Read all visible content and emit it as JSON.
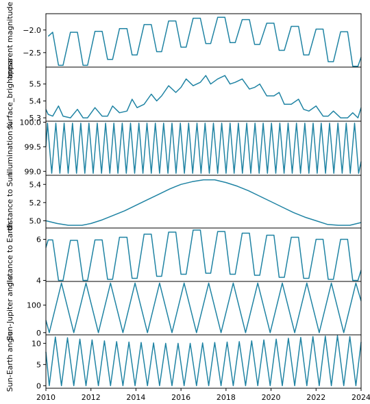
{
  "chart_data": {
    "type": "line",
    "x_axis": {
      "xlim": [
        2010,
        2024
      ],
      "ticks": [
        "2010",
        "2012",
        "2014",
        "2016",
        "2018",
        "2020",
        "2022",
        "2024"
      ],
      "xlabel": ""
    },
    "line_color": "#1f83a3",
    "panels": [
      {
        "ylabel": "apparent magnitude",
        "ylim": [
          -2.82,
          -1.64
        ],
        "ticks": [
          {
            "value": -2.0,
            "label": "−2.0"
          },
          {
            "value": -2.5,
            "label": "−2.5"
          }
        ],
        "series": {
          "x": [
            2010.1,
            2010.3,
            2010.56,
            2010.76,
            2011.09,
            2011.4,
            2011.65,
            2011.85,
            2012.18,
            2012.5,
            2012.74,
            2012.96,
            2013.27,
            2013.6,
            2013.83,
            2014.05,
            2014.36,
            2014.68,
            2014.92,
            2015.14,
            2015.45,
            2015.77,
            2016.0,
            2016.23,
            2016.54,
            2016.86,
            2017.1,
            2017.32,
            2017.63,
            2017.95,
            2018.18,
            2018.41,
            2018.72,
            2019.04,
            2019.27,
            2019.5,
            2019.81,
            2020.13,
            2020.36,
            2020.59,
            2020.9,
            2021.22,
            2021.45,
            2021.68,
            2022.0,
            2022.31,
            2022.54,
            2022.77,
            2023.09,
            2023.4,
            2023.63,
            2023.86,
            2024.0
          ],
          "y": [
            -2.14,
            -2.05,
            -2.78,
            -2.78,
            -2.05,
            -2.05,
            -2.78,
            -2.78,
            -2.03,
            -2.03,
            -2.65,
            -2.65,
            -1.97,
            -1.97,
            -2.55,
            -2.55,
            -1.88,
            -1.88,
            -2.48,
            -2.48,
            -1.8,
            -1.8,
            -2.38,
            -2.38,
            -1.74,
            -1.74,
            -2.3,
            -2.3,
            -1.72,
            -1.72,
            -2.28,
            -2.28,
            -1.77,
            -1.77,
            -2.32,
            -2.32,
            -1.85,
            -1.85,
            -2.45,
            -2.45,
            -1.92,
            -1.92,
            -2.55,
            -2.55,
            -1.98,
            -1.98,
            -2.7,
            -2.7,
            -2.04,
            -2.04,
            -2.8,
            -2.8,
            -2.6
          ]
        }
      },
      {
        "ylabel": "surface_brightness",
        "ylim": [
          5.28,
          5.6
        ],
        "ticks": [
          {
            "value": 5.3,
            "label": "5.3"
          },
          {
            "value": 5.4,
            "label": "5.4"
          },
          {
            "value": 5.5,
            "label": "5.5"
          }
        ],
        "series": {
          "x": [
            2010.0,
            2010.1,
            2010.3,
            2010.56,
            2010.76,
            2011.09,
            2011.4,
            2011.65,
            2011.85,
            2012.18,
            2012.5,
            2012.74,
            2012.96,
            2013.27,
            2013.6,
            2013.83,
            2014.05,
            2014.36,
            2014.68,
            2014.92,
            2015.14,
            2015.45,
            2015.77,
            2016.0,
            2016.23,
            2016.54,
            2016.86,
            2017.1,
            2017.32,
            2017.63,
            2017.95,
            2018.18,
            2018.41,
            2018.72,
            2019.04,
            2019.27,
            2019.5,
            2019.81,
            2020.13,
            2020.36,
            2020.59,
            2020.9,
            2021.22,
            2021.45,
            2021.68,
            2022.0,
            2022.31,
            2022.54,
            2022.77,
            2023.09,
            2023.4,
            2023.63,
            2023.86,
            2024.0
          ],
          "y": [
            5.35,
            5.32,
            5.31,
            5.37,
            5.31,
            5.3,
            5.35,
            5.3,
            5.3,
            5.36,
            5.31,
            5.31,
            5.37,
            5.33,
            5.34,
            5.41,
            5.36,
            5.38,
            5.44,
            5.4,
            5.43,
            5.49,
            5.45,
            5.48,
            5.53,
            5.49,
            5.51,
            5.55,
            5.5,
            5.53,
            5.55,
            5.5,
            5.51,
            5.53,
            5.47,
            5.48,
            5.5,
            5.43,
            5.43,
            5.45,
            5.38,
            5.38,
            5.41,
            5.35,
            5.34,
            5.37,
            5.31,
            5.31,
            5.34,
            5.3,
            5.3,
            5.33,
            5.3,
            5.36
          ]
        }
      },
      {
        "ylabel": "illumination %",
        "ylim": [
          98.92,
          100.02
        ],
        "ticks": [
          {
            "value": 99.0,
            "label": "99.0"
          },
          {
            "value": 99.5,
            "label": "99.5"
          },
          {
            "value": 100.0,
            "label": "100.0"
          }
        ],
        "series": {
          "x": [
            2010.0,
            2010.07,
            2010.26,
            2010.44,
            2010.62,
            2010.81,
            2010.99,
            2011.18,
            2011.36,
            2011.55,
            2011.73,
            2011.91,
            2012.1,
            2012.28,
            2012.47,
            2012.65,
            2012.84,
            2013.02,
            2013.2,
            2013.39,
            2013.57,
            2013.76,
            2013.94,
            2014.13,
            2014.31,
            2014.49,
            2014.68,
            2014.86,
            2015.05,
            2015.23,
            2015.42,
            2015.6,
            2015.78,
            2015.97,
            2016.15,
            2016.34,
            2016.52,
            2016.71,
            2016.89,
            2017.07,
            2017.26,
            2017.44,
            2017.63,
            2017.81,
            2018.0,
            2018.18,
            2018.36,
            2018.55,
            2018.73,
            2018.92,
            2019.1,
            2019.29,
            2019.47,
            2019.65,
            2019.84,
            2020.02,
            2020.21,
            2020.39,
            2020.58,
            2020.76,
            2020.94,
            2021.13,
            2021.31,
            2021.5,
            2021.68,
            2021.87,
            2022.05,
            2022.23,
            2022.42,
            2022.6,
            2022.79,
            2022.97,
            2023.16,
            2023.34,
            2023.52,
            2023.71,
            2023.89,
            2024.0
          ],
          "y": [
            99.5,
            99.98,
            98.96,
            99.98,
            98.96,
            99.98,
            98.96,
            99.98,
            98.96,
            99.98,
            98.96,
            99.98,
            98.96,
            99.98,
            98.96,
            99.98,
            98.96,
            99.98,
            98.96,
            99.98,
            98.96,
            99.98,
            98.96,
            99.98,
            98.96,
            99.98,
            98.96,
            99.98,
            98.96,
            99.98,
            98.96,
            99.98,
            98.96,
            99.98,
            98.96,
            99.98,
            98.96,
            99.98,
            98.96,
            99.98,
            98.96,
            99.98,
            98.96,
            99.98,
            98.96,
            99.98,
            98.96,
            99.98,
            98.96,
            99.98,
            98.96,
            99.98,
            98.96,
            99.98,
            98.96,
            99.98,
            98.96,
            99.98,
            98.96,
            99.98,
            98.96,
            99.98,
            98.96,
            99.98,
            98.96,
            99.98,
            98.96,
            99.98,
            98.96,
            99.98,
            98.96,
            99.98,
            98.96,
            99.98,
            98.96,
            99.98,
            98.96,
            99.2
          ]
        }
      },
      {
        "ylabel": "distance to Sun",
        "ylim": [
          4.92,
          5.5
        ],
        "ticks": [
          {
            "value": 5.0,
            "label": "5.0"
          },
          {
            "value": 5.2,
            "label": "5.2"
          },
          {
            "value": 5.4,
            "label": "5.4"
          }
        ],
        "series": {
          "x": [
            2010.0,
            2010.5,
            2011.0,
            2011.25,
            2011.6,
            2012.0,
            2012.5,
            2013.0,
            2013.5,
            2014.0,
            2014.5,
            2015.0,
            2015.5,
            2016.0,
            2016.5,
            2017.0,
            2017.2,
            2017.5,
            2018.0,
            2018.5,
            2019.0,
            2019.5,
            2020.0,
            2020.5,
            2021.0,
            2021.5,
            2022.0,
            2022.5,
            2023.0,
            2023.15,
            2023.5,
            2024.0
          ],
          "y": [
            5.0,
            4.97,
            4.95,
            4.95,
            4.95,
            4.97,
            5.01,
            5.06,
            5.11,
            5.17,
            5.23,
            5.29,
            5.35,
            5.4,
            5.43,
            5.45,
            5.45,
            5.45,
            5.42,
            5.38,
            5.33,
            5.27,
            5.21,
            5.15,
            5.09,
            5.04,
            5.0,
            4.96,
            4.95,
            4.95,
            4.95,
            4.98
          ]
        }
      },
      {
        "ylabel": "distance to Earth",
        "ylim": [
          3.95,
          6.55
        ],
        "ticks": [
          {
            "value": 4,
            "label": "4"
          },
          {
            "value": 6,
            "label": "6"
          }
        ],
        "series": {
          "x": [
            2010.0,
            2010.1,
            2010.3,
            2010.56,
            2010.76,
            2011.09,
            2011.4,
            2011.65,
            2011.85,
            2012.18,
            2012.5,
            2012.74,
            2012.96,
            2013.27,
            2013.6,
            2013.83,
            2014.05,
            2014.36,
            2014.68,
            2014.92,
            2015.14,
            2015.45,
            2015.77,
            2016.0,
            2016.23,
            2016.54,
            2016.86,
            2017.1,
            2017.32,
            2017.63,
            2017.95,
            2018.18,
            2018.41,
            2018.72,
            2019.04,
            2019.27,
            2019.5,
            2019.81,
            2020.13,
            2020.36,
            2020.59,
            2020.9,
            2021.22,
            2021.45,
            2021.68,
            2022.0,
            2022.31,
            2022.54,
            2022.77,
            2023.09,
            2023.4,
            2023.63,
            2023.86,
            2024.0
          ],
          "y": [
            5.6,
            5.97,
            5.97,
            4.0,
            4.0,
            5.95,
            5.95,
            4.0,
            4.0,
            5.97,
            5.97,
            4.05,
            4.05,
            6.1,
            6.1,
            4.1,
            4.1,
            6.25,
            6.25,
            4.2,
            4.2,
            6.35,
            6.35,
            4.3,
            4.3,
            6.45,
            6.45,
            4.35,
            4.35,
            6.38,
            6.38,
            4.3,
            4.3,
            6.3,
            6.3,
            4.25,
            4.25,
            6.2,
            6.2,
            4.15,
            4.15,
            6.1,
            6.1,
            4.1,
            4.1,
            6.0,
            6.0,
            4.05,
            4.05,
            6.0,
            6.0,
            4.0,
            4.0,
            4.5
          ]
        }
      },
      {
        "ylabel": "Sun-Jupiter angle",
        "ylim": [
          -8,
          186
        ],
        "ticks": [
          {
            "value": 0,
            "label": "0"
          },
          {
            "value": 100,
            "label": "100"
          }
        ],
        "series": {
          "x": [
            2010.0,
            2010.15,
            2010.69,
            2011.24,
            2011.78,
            2012.33,
            2012.87,
            2013.42,
            2013.96,
            2014.51,
            2015.05,
            2015.6,
            2016.14,
            2016.69,
            2017.23,
            2017.78,
            2018.32,
            2018.87,
            2019.41,
            2019.96,
            2020.5,
            2021.05,
            2021.59,
            2022.14,
            2022.68,
            2023.23,
            2023.77,
            2024.0
          ],
          "y": [
            45,
            0,
            180,
            0,
            180,
            0,
            180,
            0,
            180,
            0,
            180,
            0,
            180,
            0,
            180,
            0,
            180,
            0,
            180,
            0,
            180,
            0,
            180,
            0,
            180,
            0,
            180,
            115
          ]
        }
      },
      {
        "ylabel": "Sun-Earth angle",
        "ylim": [
          -0.6,
          12.0
        ],
        "ticks": [
          {
            "value": 0,
            "label": "0"
          },
          {
            "value": 5,
            "label": "5"
          },
          {
            "value": 10,
            "label": "10"
          }
        ],
        "series": {
          "x": [
            2010.0,
            2010.15,
            2010.42,
            2010.69,
            2010.96,
            2011.24,
            2011.51,
            2011.78,
            2012.05,
            2012.33,
            2012.6,
            2012.87,
            2013.14,
            2013.42,
            2013.69,
            2013.96,
            2014.23,
            2014.51,
            2014.78,
            2015.05,
            2015.32,
            2015.6,
            2015.87,
            2016.14,
            2016.41,
            2016.69,
            2016.96,
            2017.23,
            2017.5,
            2017.78,
            2018.05,
            2018.32,
            2018.59,
            2018.87,
            2019.14,
            2019.41,
            2019.68,
            2019.96,
            2020.23,
            2020.5,
            2020.77,
            2021.05,
            2021.32,
            2021.59,
            2021.86,
            2022.14,
            2022.41,
            2022.68,
            2022.95,
            2023.23,
            2023.5,
            2023.77,
            2024.0
          ],
          "y": [
            8.0,
            0.0,
            11.5,
            0.0,
            11.3,
            0.0,
            11.0,
            0.0,
            10.8,
            0.0,
            10.6,
            0.0,
            10.4,
            0.0,
            10.3,
            0.0,
            10.2,
            0.0,
            10.1,
            0.0,
            10.0,
            0.0,
            10.0,
            0.0,
            10.0,
            0.0,
            10.1,
            0.0,
            10.2,
            0.0,
            10.3,
            0.0,
            10.4,
            0.0,
            10.6,
            0.0,
            10.8,
            0.0,
            11.0,
            0.0,
            11.2,
            0.0,
            11.4,
            0.0,
            11.6,
            0.0,
            11.7,
            0.0,
            11.8,
            0.0,
            11.6,
            0.0,
            10.3
          ]
        }
      }
    ]
  }
}
